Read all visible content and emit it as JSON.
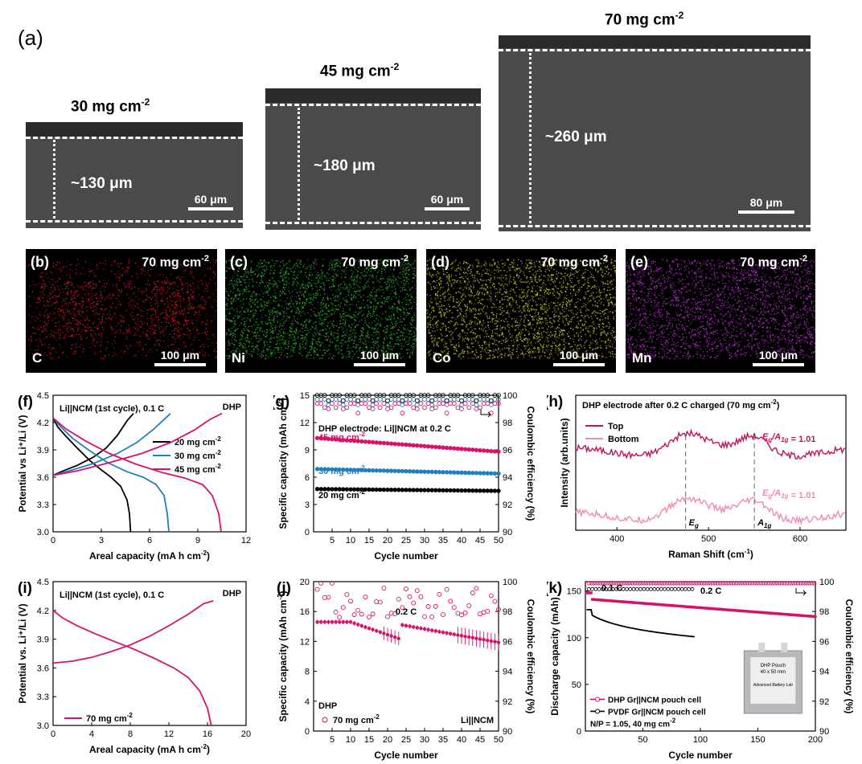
{
  "panel_a": {
    "label": "(a)",
    "images": [
      {
        "title": "30 mg cm",
        "sup": "-2",
        "thickness": "~130 μm",
        "scalebar": "60 μm"
      },
      {
        "title": "45 mg cm",
        "sup": "-2",
        "thickness": "~180 μm",
        "scalebar": "60 μm"
      },
      {
        "title": "70 mg cm",
        "sup": "-2",
        "thickness": "~260 μm",
        "scalebar": "80 μm"
      }
    ]
  },
  "eds": [
    {
      "label": "(b)",
      "loading": "70 mg cm",
      "sup": "-2",
      "element": "C",
      "scalebar": "100 μm",
      "color": "#e0161b"
    },
    {
      "label": "(c)",
      "loading": "70 mg cm",
      "sup": "-2",
      "element": "Ni",
      "scalebar": "100 μm",
      "color": "#2fb52c"
    },
    {
      "label": "(d)",
      "loading": "70 mg cm",
      "sup": "-2",
      "element": "Co",
      "scalebar": "100 μm",
      "color": "#c8c02a"
    },
    {
      "label": "(e)",
      "loading": "70 mg cm",
      "sup": "-2",
      "element": "Mn",
      "scalebar": "100 μm",
      "color": "#b52fc8"
    }
  ],
  "chart_data": [
    {
      "id": "f",
      "type": "line",
      "label": "(f)",
      "annotation": "Li||NCM (1st cycle), 0.1 C",
      "tag": "DHP",
      "xlabel": "Areal capacity (mA h cm",
      "xlabel_sup": "-2",
      "xlabel_end": ")",
      "ylabel": "Potential vs Li⁺/Li (V)",
      "xlim": [
        0,
        12
      ],
      "ylim": [
        3.0,
        4.5
      ],
      "xticks": [
        0,
        3,
        6,
        9,
        12
      ],
      "yticks": [
        3.0,
        3.3,
        3.6,
        3.9,
        4.2,
        4.5
      ],
      "series": [
        {
          "name": "20 mg cm",
          "sup": "-2",
          "color": "#000000",
          "charge": [
            [
              0,
              3.62
            ],
            [
              0.5,
              3.66
            ],
            [
              1.5,
              3.73
            ],
            [
              2.5,
              3.82
            ],
            [
              3.3,
              3.92
            ],
            [
              4.0,
              4.06
            ],
            [
              4.6,
              4.22
            ],
            [
              5.0,
              4.3
            ]
          ],
          "discharge": [
            [
              0,
              4.25
            ],
            [
              0.3,
              4.15
            ],
            [
              0.8,
              4.05
            ],
            [
              1.5,
              3.92
            ],
            [
              2.3,
              3.78
            ],
            [
              3.0,
              3.68
            ],
            [
              3.6,
              3.6
            ],
            [
              4.2,
              3.5
            ],
            [
              4.6,
              3.35
            ],
            [
              4.75,
              3.2
            ],
            [
              4.82,
              3.0
            ]
          ]
        },
        {
          "name": "30 mg cm",
          "sup": "-2",
          "color": "#1f7fbf",
          "charge": [
            [
              0,
              3.62
            ],
            [
              1,
              3.67
            ],
            [
              2.5,
              3.75
            ],
            [
              4,
              3.86
            ],
            [
              5.2,
              3.98
            ],
            [
              6.2,
              4.12
            ],
            [
              7.0,
              4.25
            ],
            [
              7.3,
              4.3
            ]
          ],
          "discharge": [
            [
              0,
              4.25
            ],
            [
              0.5,
              4.15
            ],
            [
              1.2,
              4.03
            ],
            [
              2.2,
              3.9
            ],
            [
              3.4,
              3.76
            ],
            [
              4.6,
              3.66
            ],
            [
              5.6,
              3.6
            ],
            [
              6.4,
              3.52
            ],
            [
              6.9,
              3.4
            ],
            [
              7.1,
              3.2
            ],
            [
              7.2,
              3.0
            ]
          ]
        },
        {
          "name": "45 mg cm",
          "sup": "-2",
          "color": "#d6136b",
          "charge": [
            [
              0,
              3.62
            ],
            [
              1.5,
              3.67
            ],
            [
              3.5,
              3.76
            ],
            [
              5.5,
              3.86
            ],
            [
              7.3,
              3.98
            ],
            [
              8.8,
              4.12
            ],
            [
              9.8,
              4.24
            ],
            [
              10.5,
              4.3
            ]
          ],
          "discharge": [
            [
              0,
              4.25
            ],
            [
              0.8,
              4.13
            ],
            [
              2,
              4.0
            ],
            [
              3.5,
              3.86
            ],
            [
              5.2,
              3.74
            ],
            [
              6.8,
              3.65
            ],
            [
              8.2,
              3.59
            ],
            [
              9.3,
              3.52
            ],
            [
              9.9,
              3.4
            ],
            [
              10.3,
              3.2
            ],
            [
              10.45,
              3.0
            ]
          ]
        }
      ]
    },
    {
      "id": "g",
      "type": "scatter",
      "label": "(g)",
      "annotation": "DHP electrode: Li||NCM at 0.2 C",
      "xlabel": "Cycle number",
      "ylabel": "Specific capacity (mAh cm",
      "ylabel_sup": "-2",
      "ylabel_end": ")",
      "y2label": "Coulombic efficiency (%)",
      "xlim": [
        0,
        50
      ],
      "ylim": [
        0,
        15
      ],
      "y2lim": [
        90,
        100
      ],
      "xticks": [
        5,
        10,
        15,
        20,
        25,
        30,
        35,
        40,
        45,
        50
      ],
      "yticks": [
        0,
        3,
        6,
        9,
        12,
        15
      ],
      "y2ticks": [
        90,
        92,
        94,
        96,
        98,
        100
      ],
      "series": [
        {
          "name": "45 mg cm",
          "sup": "-2",
          "color": "#d6136b",
          "start": 10.3,
          "end": 8.8,
          "ce": 99.4
        },
        {
          "name": "30 mg cm",
          "sup": "-2",
          "color": "#1f7fbf",
          "start": 6.9,
          "end": 6.4,
          "ce": 99.7
        },
        {
          "name": "20 mg cm",
          "sup": "-2",
          "color": "#000000",
          "start": 4.7,
          "end": 4.5,
          "ce": 100.0
        }
      ]
    },
    {
      "id": "h",
      "type": "line",
      "label": "(h)",
      "annotation": "DHP electrode after 0.2 C charged (70 mg cm",
      "annotation_sup": "-2",
      "annotation_end": ")",
      "xlabel": "Raman Shift (cm",
      "xlabel_sup": "-1",
      "xlabel_end": ")",
      "ylabel": "Intensity (arb.units)",
      "xlim": [
        355,
        650
      ],
      "xticks": [
        400,
        500,
        600
      ],
      "peaks": [
        "E",
        "A"
      ],
      "peak_subs": [
        "g",
        "1g"
      ],
      "peak_positions": [
        475,
        550
      ],
      "ratio_label": "= 1.01",
      "series": [
        {
          "name": "Top",
          "color": "#c2145f",
          "ratio": "1.01",
          "offset": 0.58
        },
        {
          "name": "Bottom",
          "color": "#f08ab8",
          "ratio": "1.01",
          "offset": 0.1
        }
      ]
    },
    {
      "id": "i",
      "type": "line",
      "label": "(i)",
      "annotation": "Li||NCM (1st cycle), 0.1 C",
      "tag": "DHP",
      "xlabel": "Areal capacity (mA h cm",
      "xlabel_sup": "-2",
      "xlabel_end": ")",
      "ylabel": "Potential vs. Li⁺/Li (V)",
      "xlim": [
        0,
        20
      ],
      "ylim": [
        3.0,
        4.5
      ],
      "xticks": [
        0,
        4,
        8,
        12,
        16,
        20
      ],
      "yticks": [
        3.0,
        3.3,
        3.6,
        3.9,
        4.2,
        4.5
      ],
      "series": [
        {
          "name": "70 mg cm",
          "sup": "-2",
          "color": "#d6136b",
          "charge": [
            [
              0,
              3.65
            ],
            [
              2,
              3.67
            ],
            [
              4,
              3.71
            ],
            [
              6,
              3.77
            ],
            [
              8,
              3.84
            ],
            [
              10,
              3.93
            ],
            [
              12,
              4.04
            ],
            [
              14,
              4.16
            ],
            [
              15.6,
              4.27
            ],
            [
              16.6,
              4.3
            ]
          ],
          "discharge": [
            [
              0,
              4.2
            ],
            [
              1,
              4.12
            ],
            [
              2.5,
              4.04
            ],
            [
              4.5,
              3.95
            ],
            [
              6.5,
              3.87
            ],
            [
              8.5,
              3.79
            ],
            [
              10.5,
              3.7
            ],
            [
              12.5,
              3.6
            ],
            [
              14,
              3.5
            ],
            [
              15.2,
              3.36
            ],
            [
              16,
              3.18
            ],
            [
              16.4,
              3.0
            ]
          ]
        }
      ]
    },
    {
      "id": "j",
      "type": "scatter",
      "label": "(j)",
      "annotation": "0.2 C",
      "tag": "DHP",
      "tag2": "Li||NCM",
      "xlabel": "Cycle number",
      "ylabel": "Specific capacity (mAh cm",
      "ylabel_sup": "-2",
      "ylabel_end": ")",
      "y2label": "Coulombic efficiency (%)",
      "xlim": [
        0,
        50
      ],
      "ylim": [
        0,
        20
      ],
      "y2lim": [
        90,
        100
      ],
      "xticks": [
        5,
        10,
        15,
        20,
        25,
        30,
        35,
        40,
        45,
        50
      ],
      "yticks": [
        0,
        4,
        8,
        12,
        16,
        20
      ],
      "y2ticks": [
        90,
        92,
        94,
        96,
        98,
        100
      ],
      "series": [
        {
          "name": "70 mg cm",
          "sup": "-2",
          "color": "#d6136b"
        }
      ]
    },
    {
      "id": "k",
      "type": "scatter",
      "label": "(k)",
      "annotation_a": "0.1 C",
      "annotation_b": "0.2 C",
      "xlabel": "Cycle number",
      "ylabel": "Discharge capacity (mAh)",
      "y2label": "Coulombic efficiency (%)",
      "xlim": [
        0,
        200
      ],
      "ylim": [
        0,
        160
      ],
      "y2lim": [
        90,
        100
      ],
      "xticks": [
        50,
        100,
        150,
        200
      ],
      "yticks": [
        0,
        50,
        100,
        150
      ],
      "y2ticks": [
        90,
        92,
        94,
        96,
        98,
        100
      ],
      "note": "N/P = 1.05, 40 mg cm",
      "note_sup": "-2",
      "inset_title": "DHP Pouch",
      "inset_size": "40 x 50 mm",
      "inset_brand": "Advanced Battery Lab",
      "series": [
        {
          "name": "DHP Gr||NCM pouch cell",
          "color": "#d6136b"
        },
        {
          "name": "PVDF Gr||NCM pouch cell",
          "color": "#000000"
        }
      ]
    }
  ]
}
